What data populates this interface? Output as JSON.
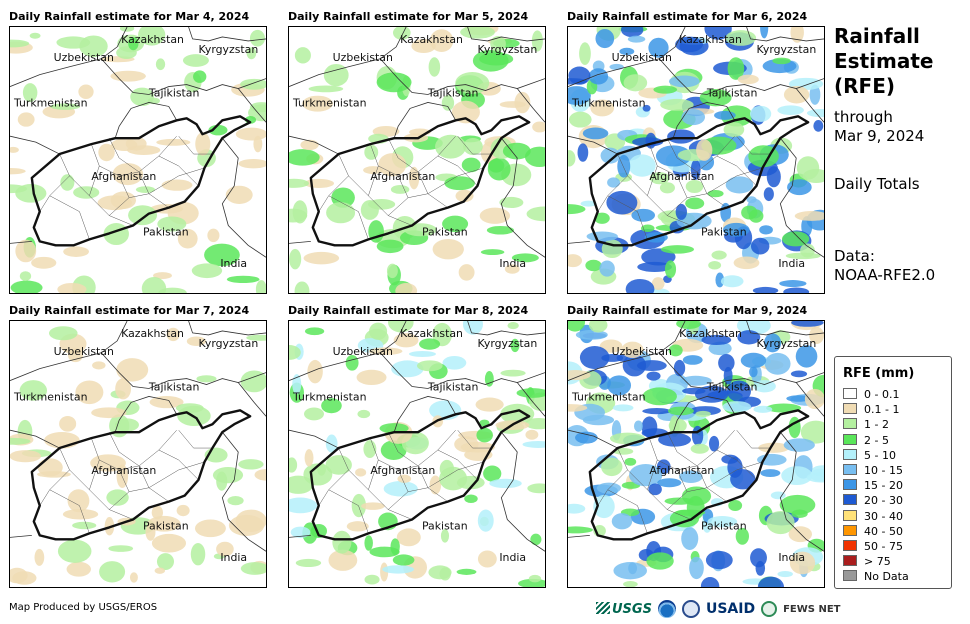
{
  "panels": [
    {
      "title": "Daily Rainfall estimate for Mar 4, 2024",
      "intensity": 0.25
    },
    {
      "title": "Daily Rainfall estimate for Mar 5, 2024",
      "intensity": 0.35
    },
    {
      "title": "Daily Rainfall estimate for Mar 6, 2024",
      "intensity": 0.9
    },
    {
      "title": "Daily Rainfall estimate for Mar 7, 2024",
      "intensity": 0.2
    },
    {
      "title": "Daily Rainfall estimate for Mar 8, 2024",
      "intensity": 0.45
    },
    {
      "title": "Daily Rainfall estimate for Mar 9, 2024",
      "intensity": 1.0
    }
  ],
  "map_labels": {
    "kazakhstan": "Kazakhstan",
    "kyrgyzstan": "Kyrgyzstan",
    "uzbekistan": "Uzbekistan",
    "tajikistan": "Tajikistan",
    "turkmenistan": "Turkmenistan",
    "afghanistan": "Afghanistan",
    "pakistan": "Pakistan",
    "india": "India"
  },
  "side": {
    "title_line1": "Rainfall",
    "title_line2": "Estimate",
    "title_line3": "(RFE)",
    "through": "through",
    "date": "Mar 9, 2024",
    "totals": "Daily Totals",
    "data_label": "Data:",
    "data_source": "NOAA-RFE2.0"
  },
  "legend": {
    "title": "RFE (mm)",
    "items": [
      {
        "label": "0 - 0.1",
        "color": "#ffffff"
      },
      {
        "label": "0.1 - 1",
        "color": "#f0dcb4"
      },
      {
        "label": "1 - 2",
        "color": "#b4f0a0"
      },
      {
        "label": "2 - 5",
        "color": "#5ae65a"
      },
      {
        "label": "5 - 10",
        "color": "#b4f0fa"
      },
      {
        "label": "10 - 15",
        "color": "#78bef0"
      },
      {
        "label": "15 - 20",
        "color": "#3c96e6"
      },
      {
        "label": "20 - 30",
        "color": "#1e5ad2"
      },
      {
        "label": "30 - 40",
        "color": "#ffe178"
      },
      {
        "label": "40 - 50",
        "color": "#ff9600"
      },
      {
        "label": "50 - 75",
        "color": "#f03200"
      },
      {
        "label": "> 75",
        "color": "#aa1e1e"
      },
      {
        "label": "No Data",
        "color": "#999999"
      }
    ]
  },
  "credit": "Map Produced by USGS/EROS",
  "logos": {
    "usgs": "USGS",
    "usaid": "USAID",
    "fewsnet": "FEWS NET"
  }
}
